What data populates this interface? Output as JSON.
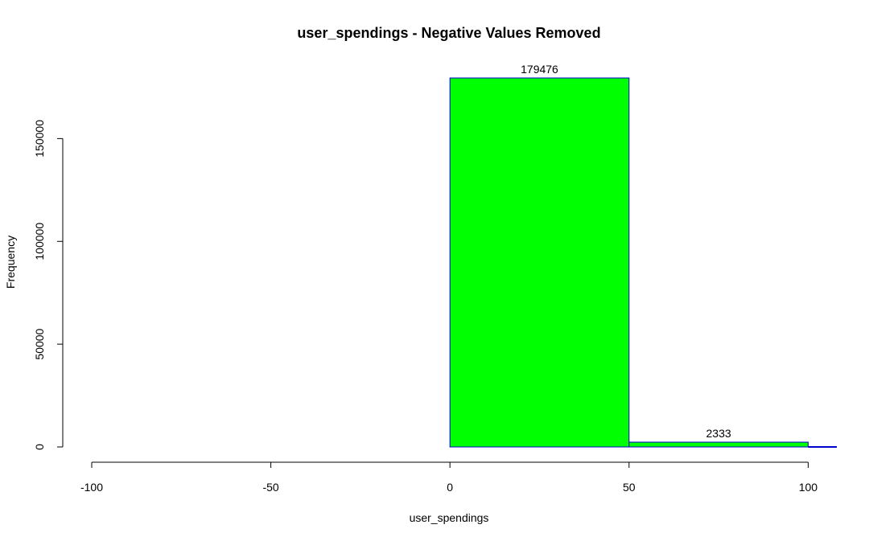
{
  "chart_data": {
    "type": "bar",
    "title": "user_spendings - Negative Values Removed",
    "xlabel": "user_spendings",
    "ylabel": "Frequency",
    "xlim": [
      -100,
      108
    ],
    "ylim": [
      0,
      179476
    ],
    "x_ticks": [
      -100,
      -50,
      0,
      50,
      100
    ],
    "y_ticks": [
      0,
      50000,
      100000,
      150000
    ],
    "bins": [
      {
        "start": 0,
        "end": 50,
        "count": 179476,
        "label": "179476"
      },
      {
        "start": 50,
        "end": 100,
        "count": 2333,
        "label": "2333"
      },
      {
        "start": 100,
        "end": 108,
        "count": 0
      }
    ],
    "colors": {
      "fill": "#00ff00",
      "border": "#0000cd"
    },
    "grid": false,
    "legend": "none"
  }
}
